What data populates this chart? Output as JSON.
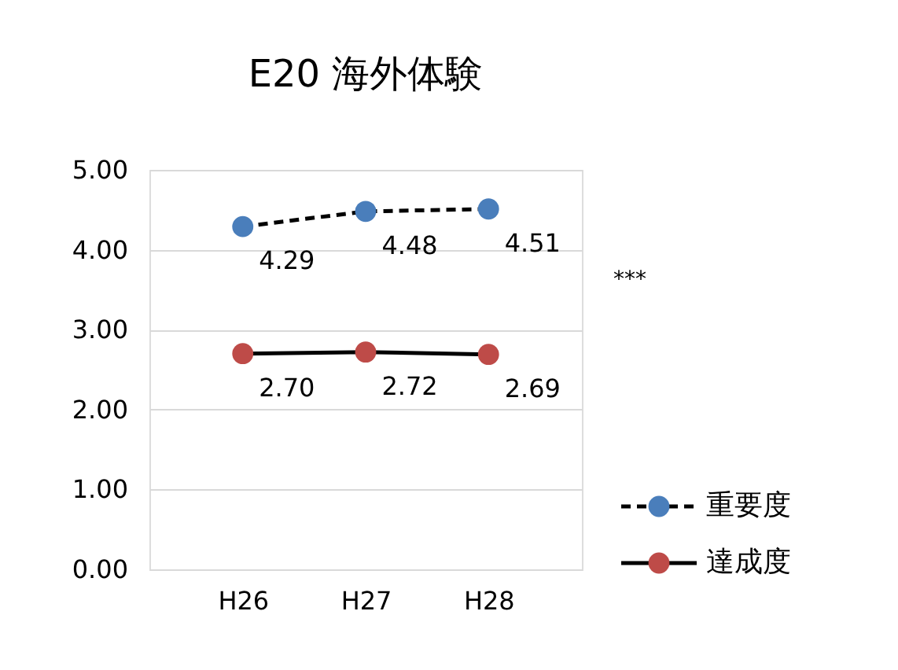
{
  "chart_data": {
    "type": "line",
    "title": "E20 海外体験",
    "categories": [
      "H26",
      "H27",
      "H28"
    ],
    "series": [
      {
        "name": "重要度",
        "color": "#4a7ebb",
        "values": [
          4.29,
          4.48,
          4.51
        ],
        "value_labels": [
          "4.29",
          "4.48",
          "4.51"
        ],
        "line_style": "dashed"
      },
      {
        "name": "達成度",
        "color": "#be4b48",
        "values": [
          2.7,
          2.72,
          2.69
        ],
        "value_labels": [
          "2.70",
          "2.72",
          "2.69"
        ],
        "line_style": "solid"
      }
    ],
    "ylim": [
      0,
      5
    ],
    "yticks": [
      {
        "value": 0,
        "label": "0.00"
      },
      {
        "value": 1,
        "label": "1.00"
      },
      {
        "value": 2,
        "label": "2.00"
      },
      {
        "value": 3,
        "label": "3.00"
      },
      {
        "value": 4,
        "label": "4.00"
      },
      {
        "value": 5,
        "label": "5.00"
      }
    ],
    "grid": "y",
    "marker": "circle",
    "legend": "right",
    "annotations": [
      "***"
    ]
  }
}
